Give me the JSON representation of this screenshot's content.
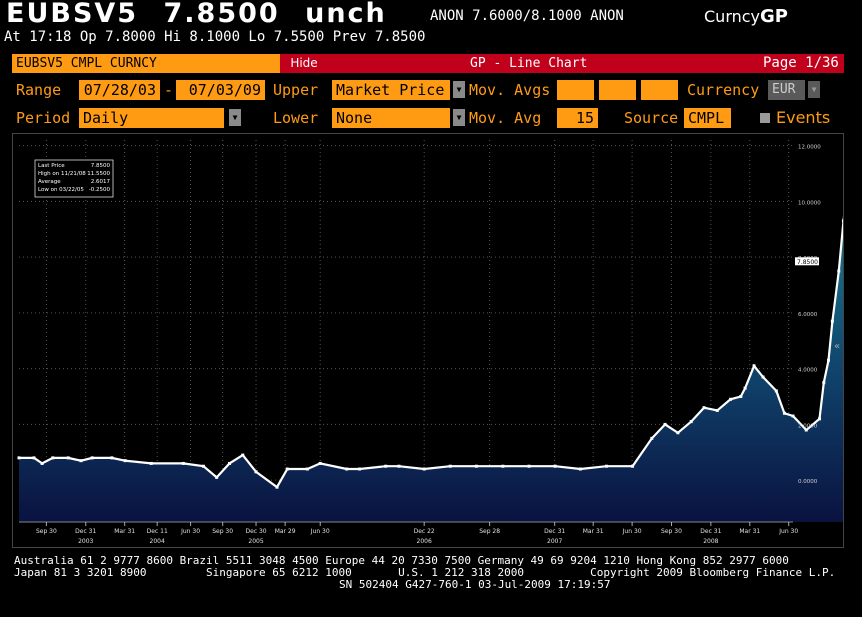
{
  "header": {
    "ticker": "EUBSV5",
    "last_price": "7.8500",
    "change": "unch",
    "bid_ask": "ANON 7.6000/8.1000 ANON",
    "sector_prefix": "Curncy",
    "sector_function": "GP",
    "time_line": "At 17:18 Op 7.8000  Hi 8.1000  Lo 7.5500  Prev 7.8500"
  },
  "titlebar": {
    "security": "EUBSV5 CMPL CURNCY",
    "hide_label": "Hide",
    "title": "GP - Line Chart",
    "page": "Page 1/36"
  },
  "params": {
    "range_label": "Range",
    "range_start": "07/28/03",
    "range_sep": "-",
    "range_end": "07/03/09",
    "upper_label": "Upper",
    "upper_value": "Market Price",
    "mov_avgs_label": "Mov. Avgs",
    "currency_label": "Currency",
    "currency_value": "EUR",
    "period_label": "Period",
    "period_value": "Daily",
    "lower_label": "Lower",
    "lower_value": "None",
    "mov_avg_label": "Mov. Avg",
    "mov_avg_value": "15",
    "source_label": "Source",
    "source_value": "CMPL",
    "events_label": "Events"
  },
  "legend": {
    "rows": [
      {
        "label": "Last Price",
        "value": "7.8500"
      },
      {
        "label": "High on 11/21/08",
        "value": "11.5500"
      },
      {
        "label": "Average",
        "value": "2.6017"
      },
      {
        "label": "Low on 03/22/05",
        "value": "-0.2500"
      }
    ]
  },
  "chart_data": {
    "type": "line",
    "series": [
      {
        "x": [
          "2003-07-28",
          "2003-09-01",
          "2003-09-20",
          "2003-10-15",
          "2003-11-20",
          "2003-12-20",
          "2004-01-15",
          "2004-03-01",
          "2004-04-01",
          "2004-06-01",
          "2004-08-15",
          "2004-10-01",
          "2004-11-01",
          "2004-12-01",
          "2005-01-01",
          "2005-02-01",
          "2005-03-22",
          "2005-04-15",
          "2005-06-01",
          "2005-07-01",
          "2005-09-01",
          "2005-10-01",
          "2005-12-01",
          "2006-01-01",
          "2006-03-01",
          "2006-05-01",
          "2006-07-01",
          "2006-09-01",
          "2006-11-01",
          "2007-01-01",
          "2007-03-01",
          "2007-05-01",
          "2007-07-01",
          "2007-08-15",
          "2007-09-15",
          "2007-10-15",
          "2007-11-15",
          "2007-12-15",
          "2008-01-15",
          "2008-02-15",
          "2008-03-10",
          "2008-03-20",
          "2008-04-10",
          "2008-05-01",
          "2008-06-01",
          "2008-06-20",
          "2008-07-10",
          "2008-08-10",
          "2008-09-10",
          "2008-09-20",
          "2008-10-01",
          "2008-10-10",
          "2008-10-25",
          "2008-11-05",
          "2008-11-21",
          "2008-12-05",
          "2008-12-20",
          "2009-01-05",
          "2009-01-20",
          "2009-02-01",
          "2009-02-15",
          "2009-03-01",
          "2009-03-20",
          "2009-04-10",
          "2009-04-30",
          "2009-05-15",
          "2009-06-01",
          "2009-06-15",
          "2009-07-03"
        ],
        "y": [
          0.8,
          0.8,
          0.6,
          0.8,
          0.8,
          0.7,
          0.8,
          0.8,
          0.7,
          0.6,
          0.6,
          0.5,
          0.1,
          0.6,
          0.9,
          0.3,
          -0.25,
          0.4,
          0.4,
          0.6,
          0.4,
          0.4,
          0.5,
          0.5,
          0.4,
          0.5,
          0.5,
          0.5,
          0.5,
          0.5,
          0.4,
          0.5,
          0.5,
          1.5,
          2.0,
          1.7,
          2.1,
          2.6,
          2.5,
          2.9,
          3.0,
          3.3,
          4.1,
          3.7,
          3.2,
          2.4,
          2.3,
          1.8,
          2.2,
          3.5,
          4.3,
          5.7,
          7.5,
          9.3,
          11.3,
          9.6,
          10.4,
          7.8,
          6.0,
          6.3,
          6.8,
          7.4,
          7.6,
          8.1,
          8.4,
          8.0,
          8.8,
          7.6,
          7.85
        ]
      }
    ],
    "ylim": [
      -1.5,
      12.2
    ],
    "yticks": [
      "12.0000",
      "10.0000",
      "8.0000",
      "6.0000",
      "4.0000",
      "2.0000",
      "0.0000"
    ],
    "ytick_values": [
      12,
      10,
      8,
      6,
      4,
      2,
      0
    ],
    "last_price_marker": "7.8500",
    "last_price_value": 7.85,
    "xticks_month": [
      "Sep 30",
      "Dec 31",
      "Mar 31",
      "Dec 11",
      "Jun 30",
      "Sep 30",
      "Dec 30",
      "Mar 29",
      "Jun 30",
      "Dec 22",
      "Sep 28",
      "Dec 31",
      "Mar 31",
      "Jun 30",
      "Sep 30",
      "Dec 31",
      "Mar 31",
      "Jun 30"
    ],
    "xtick_dates": [
      "2003-09-30",
      "2003-12-31",
      "2004-03-31",
      "2004-06-15",
      "2004-09-01",
      "2004-11-15",
      "2005-02-01",
      "2005-04-10",
      "2005-07-01",
      "2006-03-01",
      "2006-08-01",
      "2006-12-31",
      "2007-03-31",
      "2007-06-30",
      "2007-09-30",
      "2007-12-31",
      "2008-03-31",
      "2008-06-30"
    ],
    "xticks_year": [
      "2003",
      "2004",
      "2005",
      "2006",
      "2007",
      "2008"
    ],
    "xtick_year_dates": [
      "2003-12-31",
      "2004-06-15",
      "2005-02-01",
      "2006-03-01",
      "2006-12-31",
      "2007-12-31"
    ],
    "x_start": "2003-07-28",
    "x_end": "2008-07-10",
    "grid": true,
    "fill": "gradient-teal-to-navy",
    "colors": {
      "line": "#ffffff",
      "fill_top": "#1a8c9c",
      "fill_bottom": "#0a1240",
      "grid": "#555555"
    }
  },
  "footer": {
    "line1": "Australia 61 2 9777 8600 Brazil 5511 3048 4500 Europe 44 20 7330 7500 Germany 49 69 9204 1210 Hong Kong 852 2977 6000",
    "line2": "Japan 81 3 3201 8900         Singapore 65 6212 1000       U.S. 1 212 318 2000          Copyright 2009 Bloomberg Finance L.P.",
    "line3": "SN 502404 G427-760-1 03-Jul-2009 17:19:57"
  },
  "colors": {
    "orange": "#ff9b13",
    "red": "#c1001c",
    "amber_text": "#ff9b13"
  }
}
